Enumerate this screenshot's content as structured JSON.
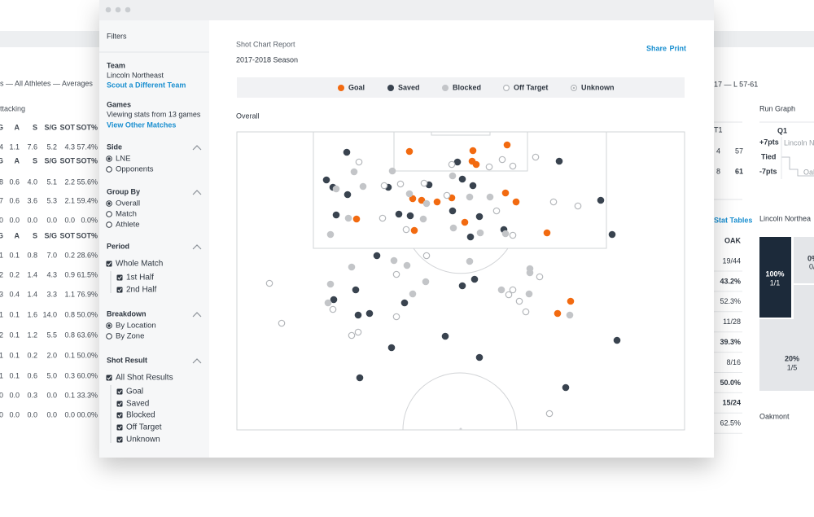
{
  "sidebar": {
    "title": "Filters",
    "team": {
      "label": "Team",
      "value": "Lincoln Northeast",
      "link": "Scout a Different Team"
    },
    "games": {
      "label": "Games",
      "value": "Viewing stats from 13 games",
      "link": "View Other Matches"
    },
    "side": {
      "label": "Side",
      "options": [
        "LNE",
        "Opponents"
      ]
    },
    "group_by": {
      "label": "Group By",
      "options": [
        "Overall",
        "Match",
        "Athlete"
      ]
    },
    "period": {
      "label": "Period",
      "all": "Whole Match",
      "options": [
        "1st Half",
        "2nd Half"
      ]
    },
    "breakdown": {
      "label": "Breakdown",
      "options": [
        "By Location",
        "By Zone"
      ]
    },
    "shot_result": {
      "label": "Shot Result",
      "all": "All Shot Results",
      "options": [
        "Goal",
        "Saved",
        "Blocked",
        "Off Target",
        "Unknown"
      ]
    }
  },
  "actions": [
    "Share",
    "Print"
  ],
  "chart_data": {
    "type": "scatter",
    "title": "Shot Chart Report",
    "subtitle": "2017-2018 Season",
    "section": "Overall",
    "xlim": [
      0,
      550
    ],
    "ylim": [
      0,
      366
    ],
    "series": [
      {
        "name": "Goal",
        "color": "#f26a10",
        "marker": "filled",
        "x": [
          212,
          290,
          332,
          289,
          294,
          216,
          227,
          246,
          264,
          330,
          343,
          147,
          280,
          218,
          381,
          410,
          394
        ],
        "y": [
          24,
          23,
          16,
          36,
          40,
          82,
          84,
          86,
          81,
          75,
          86,
          107,
          111,
          121,
          124,
          208,
          223
        ]
      },
      {
        "name": "Saved",
        "color": "#39434f",
        "marker": "filled",
        "x": [
          135,
          110,
          118,
          136,
          186,
          271,
          277,
          290,
          447,
          396,
          122,
          199,
          213,
          265,
          298,
          287,
          328,
          172,
          146,
          277,
          292,
          119,
          149,
          163,
          206,
          256,
          190,
          298,
          467,
          151,
          404,
          461,
          236
        ],
        "y": [
          25,
          59,
          68,
          77,
          68,
          37,
          58,
          66,
          84,
          36,
          102,
          101,
          103,
          97,
          104,
          129,
          120,
          152,
          194,
          189,
          181,
          206,
          225,
          223,
          210,
          251,
          265,
          277,
          256,
          302,
          314,
          126,
          65
        ]
      },
      {
        "name": "Blocked",
        "color": "#c3c5c8",
        "marker": "filled",
        "x": [
          122,
          155,
          191,
          212,
          265,
          286,
          311,
          115,
          137,
          144,
          233,
          229,
          266,
          299,
          141,
          193,
          209,
          286,
          360,
          115,
          232,
          112,
          216,
          359,
          325,
          360,
          409,
          330
        ],
        "y": [
          70,
          67,
          48,
          76,
          54,
          80,
          80,
          126,
          106,
          49,
          88,
          107,
          118,
          124,
          166,
          158,
          164,
          159,
          173,
          187,
          184,
          210,
          199,
          199,
          194,
          168,
          225,
          125
        ]
      },
      {
        "name": "Off Target",
        "color": "#b3b6ba",
        "marker": "hollow",
        "x": [
          150,
          181,
          201,
          230,
          258,
          310,
          319,
          339,
          367,
          326,
          339,
          389,
          419,
          208,
          196,
          40,
          55,
          118,
          141,
          149,
          233,
          339,
          334,
          347,
          355,
          196,
          384,
          372,
          264,
          179
        ],
        "y": [
          37,
          66,
          64,
          63,
          78,
          43,
          97,
          42,
          31,
          34,
          127,
          86,
          91,
          120,
          175,
          186,
          235,
          218,
          250,
          246,
          152,
          194,
          200,
          208,
          221,
          227,
          346,
          178,
          40,
          106
        ]
      },
      {
        "name": "Unknown",
        "color": "#b3b6ba",
        "marker": "dotted",
        "x": [],
        "y": []
      }
    ]
  },
  "left_panel": {
    "caption": "s — All Athletes — Averages",
    "section": "ttacking",
    "rows": [
      [
        "G",
        "A",
        "S",
        "S/G",
        "SOT",
        "SOT%"
      ],
      [
        "4",
        "1.1",
        "7.6",
        "5.2",
        "4.3",
        "57.4%"
      ],
      [
        "G",
        "A",
        "S",
        "S/G",
        "SOT",
        "SOT%"
      ],
      [
        "8",
        "0.6",
        "4.0",
        "5.1",
        "2.2",
        "55.6%"
      ],
      [
        "7",
        "0.6",
        "3.6",
        "5.3",
        "2.1",
        "59.4%"
      ],
      [
        "0",
        "0.0",
        "0.0",
        "0.0",
        "0.0",
        "0.0%"
      ],
      [
        "G",
        "A",
        "S",
        "S/G",
        "SOT",
        "SOT%"
      ],
      [
        "1",
        "0.1",
        "0.8",
        "7.0",
        "0.2",
        "28.6%"
      ],
      [
        "2",
        "0.2",
        "1.4",
        "4.3",
        "0.9",
        "61.5%"
      ],
      [
        "3",
        "0.4",
        "1.4",
        "3.3",
        "1.1",
        "76.9%"
      ],
      [
        "1",
        "0.1",
        "1.6",
        "14.0",
        "0.8",
        "50.0%"
      ],
      [
        "2",
        "0.1",
        "1.2",
        "5.5",
        "0.8",
        "63.6%"
      ],
      [
        "1",
        "0.1",
        "0.2",
        "2.0",
        "0.1",
        "50.0%"
      ],
      [
        "1",
        "0.1",
        "0.6",
        "5.0",
        "0.3",
        "60.0%"
      ],
      [
        "0",
        "0.0",
        "0.3",
        "0.0",
        "0.1",
        "33.3%"
      ],
      [
        "0",
        "0.0",
        "0.0",
        "0.0",
        "0.0",
        "00.0%"
      ]
    ]
  },
  "right_panel": {
    "record": "17 — L 57-61",
    "run_graph": {
      "title": "Run Graph",
      "quarter": "Q1",
      "top": "+7pts",
      "mid": "Tied",
      "bottom": "-7pts",
      "team_a": "Lincoln Northe",
      "team_b": "Oak"
    },
    "period_col": "T1",
    "score_rows": [
      [
        "4",
        "57"
      ],
      [
        "8",
        "61"
      ]
    ],
    "stat_link": "Stat Tables",
    "stat_header": "OAK",
    "stat_values": [
      "19/44",
      "43.2%",
      "52.3%",
      "11/28",
      "39.3%",
      "8/16",
      "50.0%",
      "15/24",
      "62.5%"
    ],
    "zone_title": "Lincoln Northea",
    "zones": [
      {
        "pct": "100%",
        "frac": "1/1"
      },
      {
        "pct": "0%",
        "frac": "0/"
      },
      {
        "pct": "20%",
        "frac": "1/5"
      }
    ],
    "opponent": "Oakmont"
  }
}
